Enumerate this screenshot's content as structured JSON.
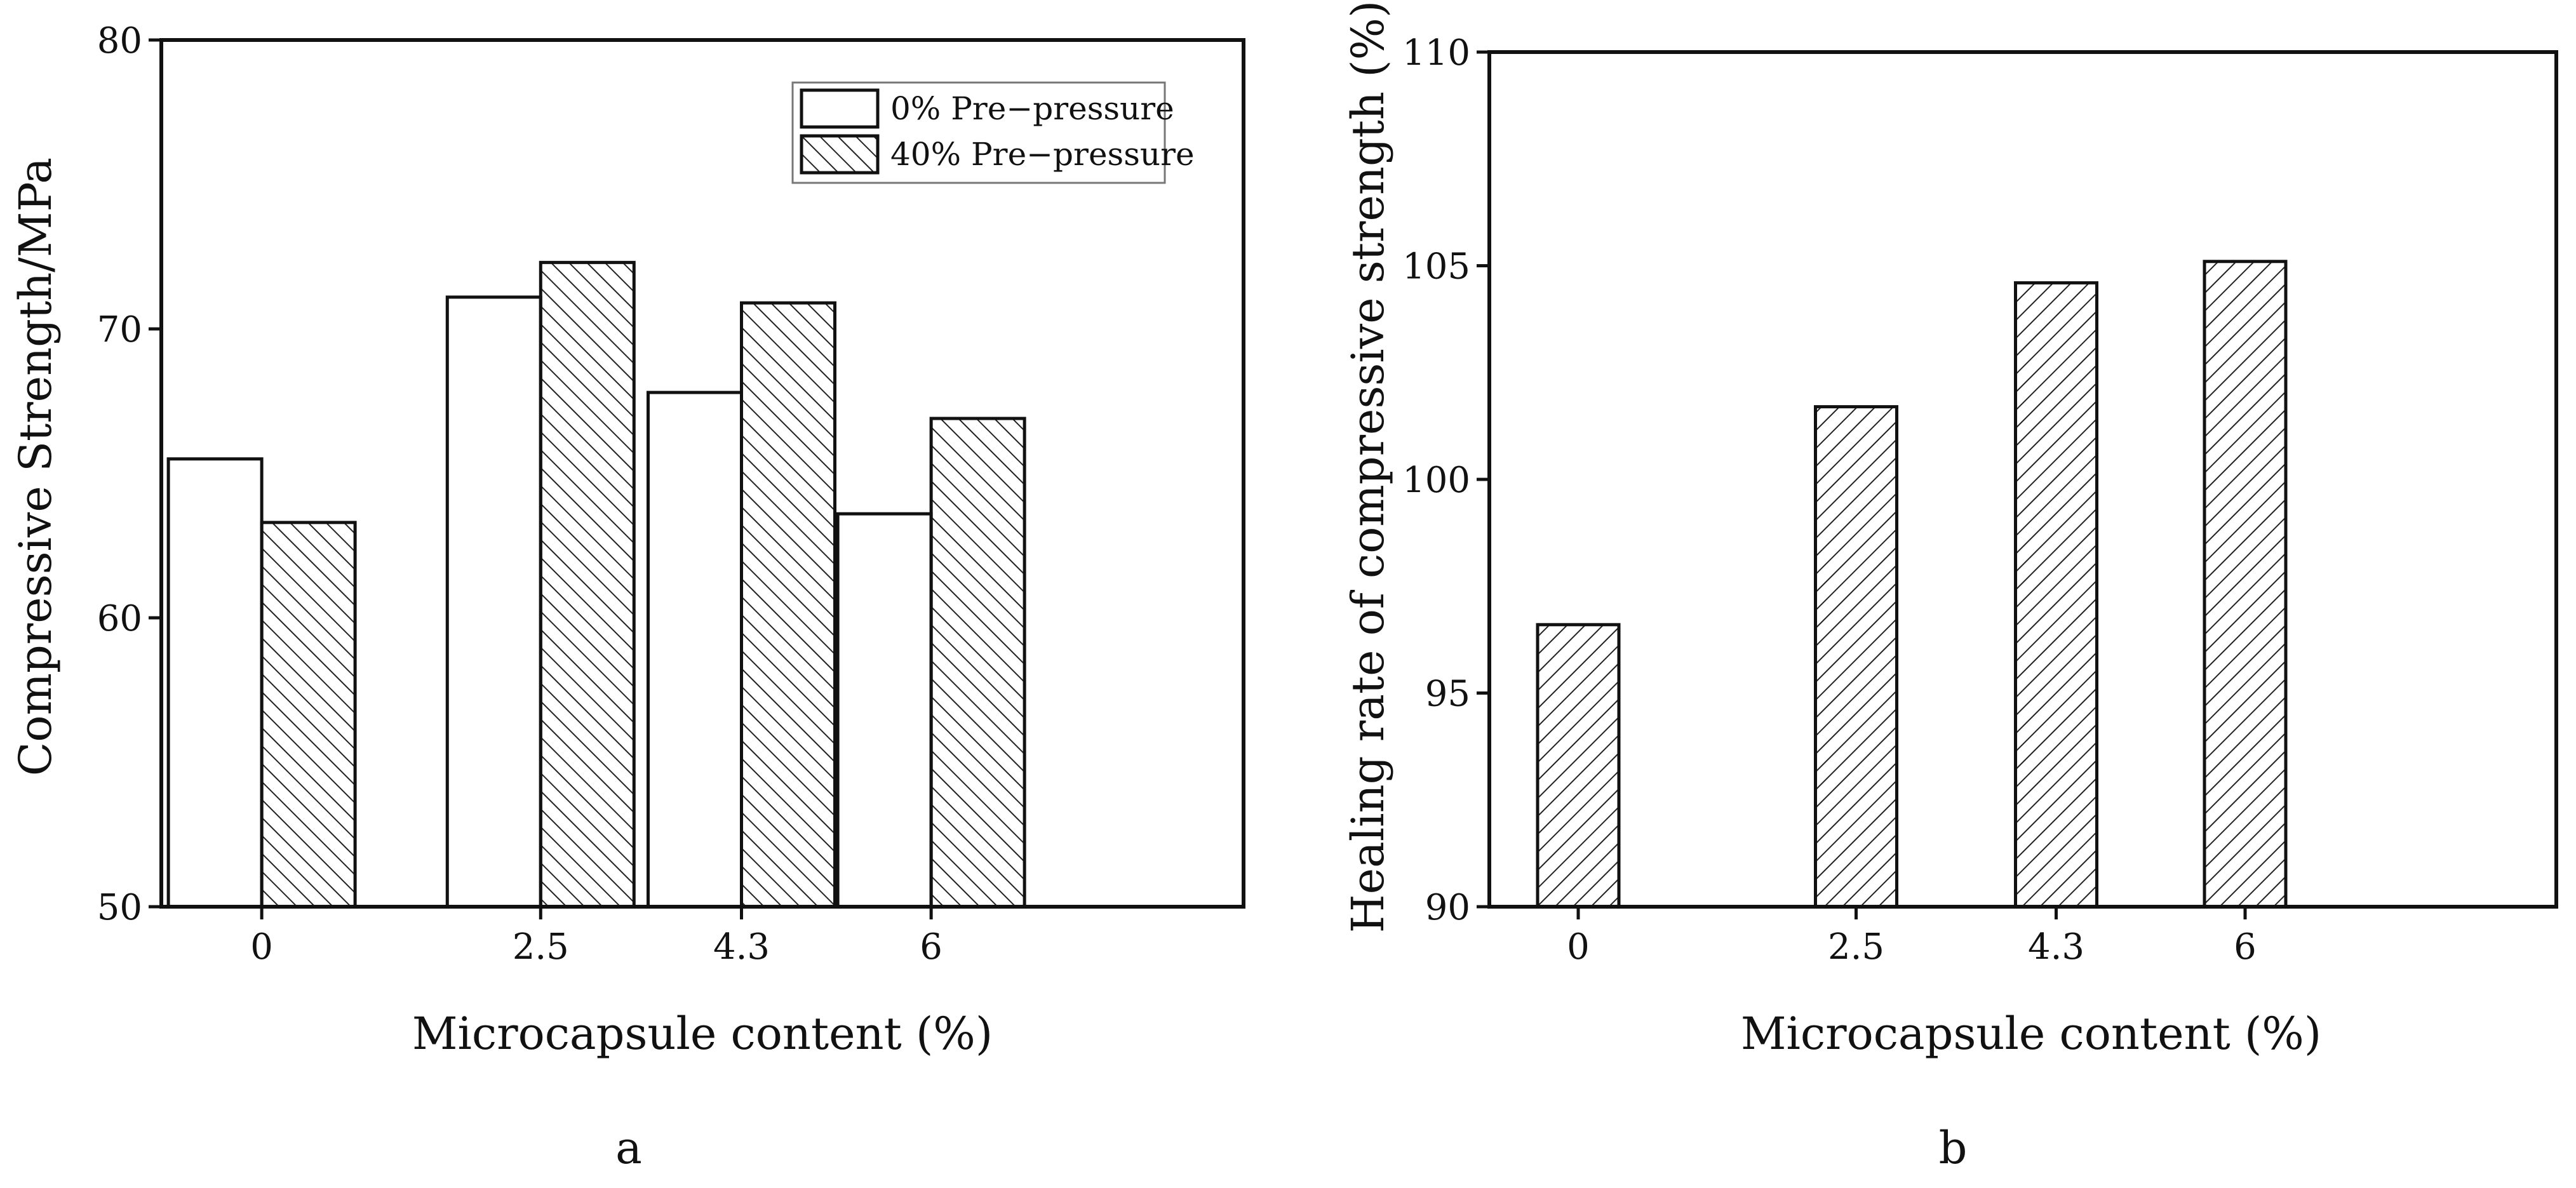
{
  "chart_data": [
    {
      "type": "bar",
      "panel_label": "a",
      "xlabel": "Microcapsule content (%)",
      "ylabel": "Compressive Strength/MPa",
      "categories": [
        "0",
        "2.5",
        "4.3",
        "6"
      ],
      "x": [
        0,
        2.5,
        4.3,
        6
      ],
      "ylim": [
        50,
        80
      ],
      "yticks": [
        50,
        60,
        70,
        80
      ],
      "legend_position": "top-right",
      "grid": false,
      "series": [
        {
          "name": "0% Pre−pressure",
          "values": [
            65.5,
            71.1,
            67.8,
            63.6
          ],
          "fill": "none"
        },
        {
          "name": "40% Pre−pressure",
          "values": [
            63.3,
            72.3,
            70.9,
            66.9
          ],
          "fill": "hatch"
        }
      ]
    },
    {
      "type": "bar",
      "panel_label": "b",
      "xlabel": "Microcapsule content (%)",
      "ylabel": "Healing rate of compressive strength (%)",
      "categories": [
        "0",
        "2.5",
        "4.3",
        "6"
      ],
      "x": [
        0,
        2.5,
        4.3,
        6
      ],
      "ylim": [
        90,
        110
      ],
      "yticks": [
        90,
        95,
        100,
        105,
        110
      ],
      "grid": false,
      "series": [
        {
          "values": [
            96.6,
            101.7,
            104.6,
            105.1
          ],
          "fill": "hatch"
        }
      ]
    }
  ]
}
